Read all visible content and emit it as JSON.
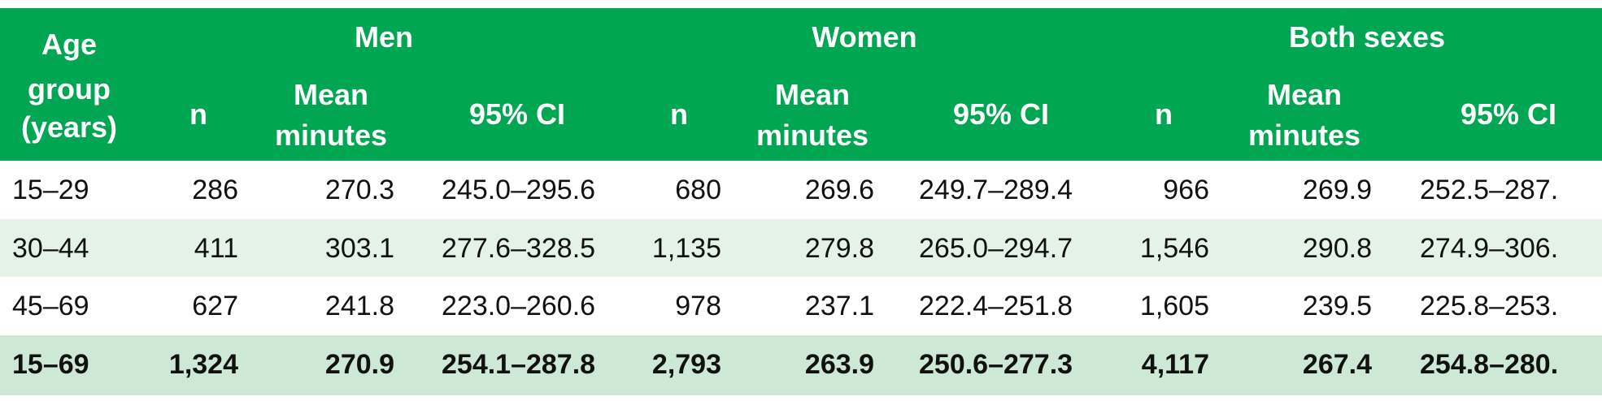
{
  "table": {
    "header": {
      "age": [
        "Age",
        "group",
        "(years)"
      ],
      "groups": [
        "Men",
        "Women",
        "Both sexes"
      ],
      "n": "n",
      "mean": [
        "Mean",
        "minutes"
      ],
      "ci": "95% CI"
    },
    "rows": [
      [
        "15–29",
        "286",
        "270.3",
        "245.0–295.6",
        "680",
        "269.6",
        "249.7–289.4",
        "966",
        "269.9",
        "252.5–287."
      ],
      [
        "30–44",
        "411",
        "303.1",
        "277.6–328.5",
        "1,135",
        "279.8",
        "265.0–294.7",
        "1,546",
        "290.8",
        "274.9–306."
      ],
      [
        "45–69",
        "627",
        "241.8",
        "223.0–260.6",
        "978",
        "237.1",
        "222.4–251.8",
        "1,605",
        "239.5",
        "225.8–253."
      ],
      [
        "15–69",
        "1,324",
        "270.9",
        "254.1–287.8",
        "2,793",
        "263.9",
        "250.6–277.3",
        "4,117",
        "267.4",
        "254.8–280."
      ]
    ]
  }
}
